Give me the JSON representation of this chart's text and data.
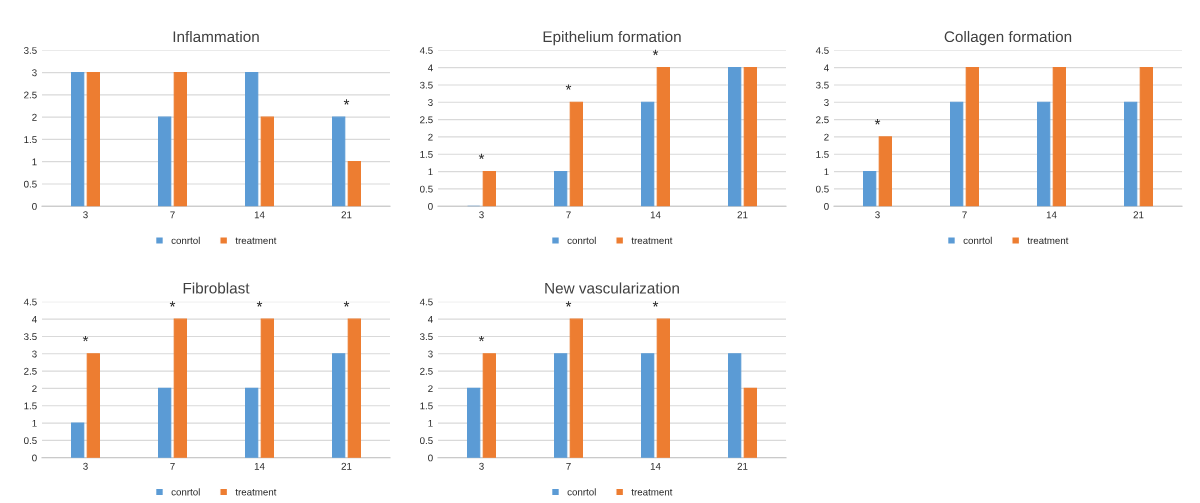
{
  "chart_data": [
    {
      "type": "bar",
      "title": "Inflammation",
      "categories": [
        "3",
        "7",
        "14",
        "21"
      ],
      "series": [
        {
          "name": "conrtol",
          "color": "#5b9bd5",
          "values": [
            3,
            2,
            3,
            2
          ]
        },
        {
          "name": "treatment",
          "color": "#ed7d31",
          "values": [
            3,
            3,
            2,
            1
          ]
        }
      ],
      "ylim": [
        0,
        3.5
      ],
      "yticks": [
        0,
        0.5,
        1,
        1.5,
        2,
        2.5,
        3,
        3.5
      ],
      "grid": "y",
      "legend": "bottom",
      "annotations": [
        {
          "text": "*",
          "x": "21",
          "y": 2
        }
      ]
    },
    {
      "type": "bar",
      "title": "Epithelium formation",
      "categories": [
        "3",
        "7",
        "14",
        "21"
      ],
      "series": [
        {
          "name": "conrtol",
          "color": "#5b9bd5",
          "values": [
            0,
            1,
            3,
            4
          ]
        },
        {
          "name": "treatment",
          "color": "#ed7d31",
          "values": [
            1,
            3,
            4,
            4
          ]
        }
      ],
      "ylim": [
        0,
        4.5
      ],
      "yticks": [
        0,
        0.5,
        1,
        1.5,
        2,
        2.5,
        3,
        3.5,
        4,
        4.5
      ],
      "grid": "y",
      "legend": "bottom",
      "annotations": [
        {
          "text": "*",
          "x": "3",
          "y": 1
        },
        {
          "text": "*",
          "x": "7",
          "y": 3
        },
        {
          "text": "*",
          "x": "14",
          "y": 4
        }
      ]
    },
    {
      "type": "bar",
      "title": "Collagen formation",
      "categories": [
        "3",
        "7",
        "14",
        "21"
      ],
      "series": [
        {
          "name": "conrtol",
          "color": "#5b9bd5",
          "values": [
            1,
            3,
            3,
            3
          ]
        },
        {
          "name": "treatment",
          "color": "#ed7d31",
          "values": [
            2,
            4,
            4,
            4
          ]
        }
      ],
      "ylim": [
        0,
        4.5
      ],
      "yticks": [
        0,
        0.5,
        1,
        1.5,
        2,
        2.5,
        3,
        3.5,
        4,
        4.5
      ],
      "grid": "y",
      "legend": "bottom",
      "annotations": [
        {
          "text": "*",
          "x": "3",
          "y": 2
        }
      ]
    },
    {
      "type": "bar",
      "title": "Fibroblast",
      "categories": [
        "3",
        "7",
        "14",
        "21"
      ],
      "series": [
        {
          "name": "conrtol",
          "color": "#5b9bd5",
          "values": [
            1,
            2,
            2,
            3
          ]
        },
        {
          "name": "treatment",
          "color": "#ed7d31",
          "values": [
            3,
            4,
            4,
            4
          ]
        }
      ],
      "ylim": [
        0,
        4.5
      ],
      "yticks": [
        0,
        0.5,
        1,
        1.5,
        2,
        2.5,
        3,
        3.5,
        4,
        4.5
      ],
      "grid": "y",
      "legend": "bottom",
      "annotations": [
        {
          "text": "*",
          "x": "3",
          "y": 3
        },
        {
          "text": "*",
          "x": "7",
          "y": 4
        },
        {
          "text": "*",
          "x": "14",
          "y": 4
        },
        {
          "text": "*",
          "x": "21",
          "y": 4
        }
      ]
    },
    {
      "type": "bar",
      "title": "New vascularization",
      "categories": [
        "3",
        "7",
        "14",
        "21"
      ],
      "series": [
        {
          "name": "conrtol",
          "color": "#5b9bd5",
          "values": [
            2,
            3,
            3,
            3
          ]
        },
        {
          "name": "treatment",
          "color": "#ed7d31",
          "values": [
            3,
            4,
            4,
            2
          ]
        }
      ],
      "ylim": [
        0,
        4.5
      ],
      "yticks": [
        0,
        0.5,
        1,
        1.5,
        2,
        2.5,
        3,
        3.5,
        4,
        4.5
      ],
      "grid": "y",
      "legend": "bottom",
      "annotations": [
        {
          "text": "*",
          "x": "3",
          "y": 3
        },
        {
          "text": "*",
          "x": "7",
          "y": 4
        },
        {
          "text": "*",
          "x": "14",
          "y": 4
        }
      ]
    }
  ]
}
